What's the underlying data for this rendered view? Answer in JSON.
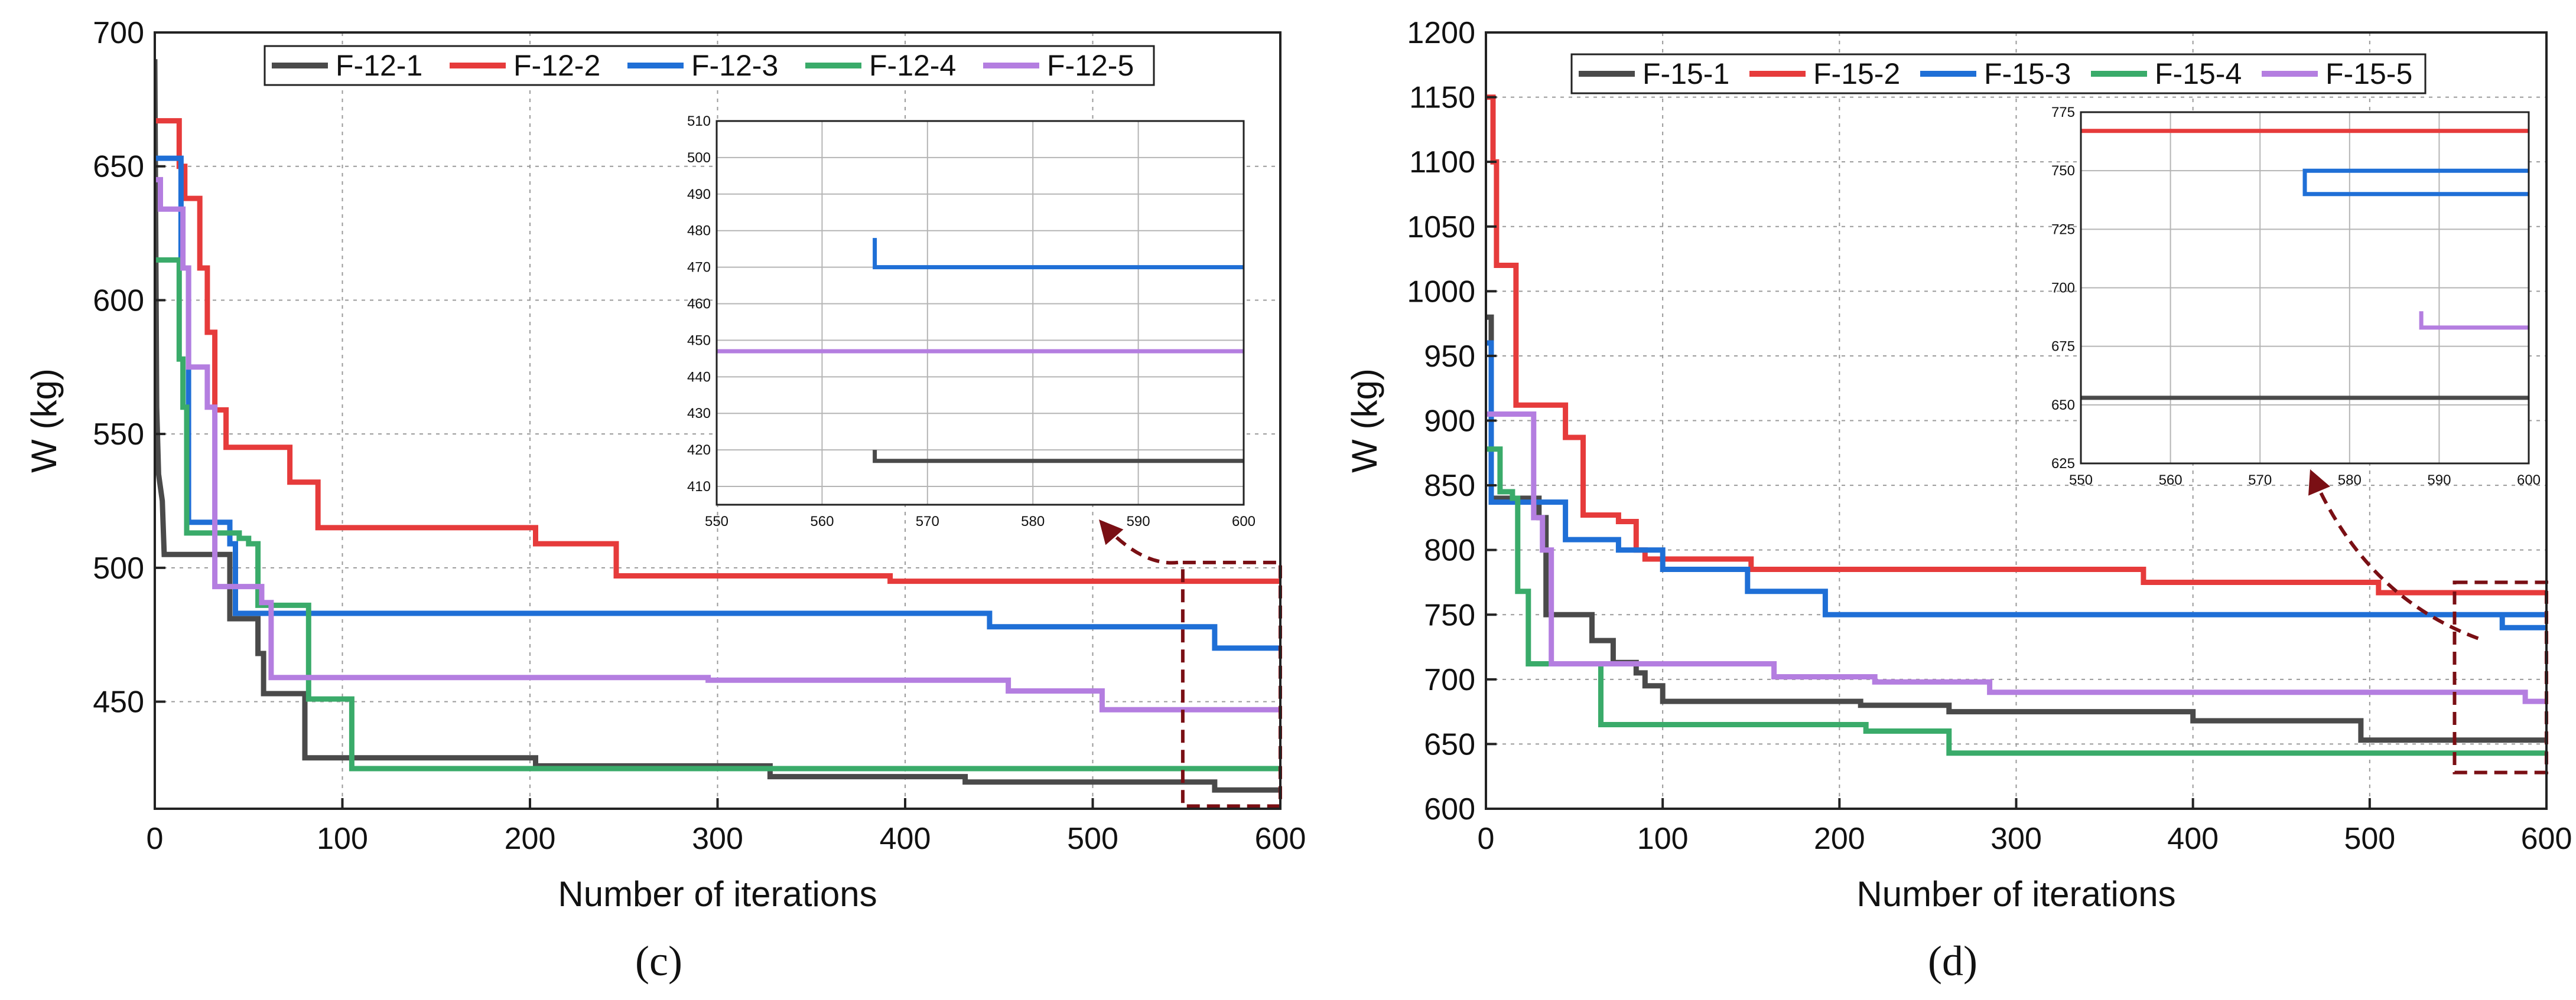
{
  "panel_labels": [
    "(c)",
    "(d)"
  ],
  "chart_data": [
    {
      "type": "line",
      "id": "c",
      "panel_label": "(c)",
      "xlabel": "Number of iterations",
      "ylabel": "W (kg)",
      "xlim": [
        0,
        600
      ],
      "ylim": [
        410,
        700
      ],
      "xticks": [
        0,
        100,
        200,
        300,
        400,
        500,
        600
      ],
      "yticks": [
        450,
        500,
        550,
        600,
        650,
        700
      ],
      "legend_position": "top",
      "series": [
        {
          "name": "F-12-1",
          "color": "#4a4a4a",
          "points": [
            [
              0,
              690
            ],
            [
              1,
              560
            ],
            [
              2,
              535
            ],
            [
              4,
              525
            ],
            [
              5,
              505
            ],
            [
              40,
              505
            ],
            [
              40,
              481
            ],
            [
              55,
              481
            ],
            [
              55,
              468
            ],
            [
              58,
              468
            ],
            [
              58,
              453
            ],
            [
              80,
              453
            ],
            [
              80,
              429
            ],
            [
              203,
              429
            ],
            [
              203,
              426
            ],
            [
              328,
              426
            ],
            [
              328,
              422
            ],
            [
              432,
              422
            ],
            [
              432,
              420
            ],
            [
              565,
              420
            ],
            [
              565,
              417
            ],
            [
              600,
              417
            ]
          ]
        },
        {
          "name": "F-12-2",
          "color": "#e63b3b",
          "points": [
            [
              0,
              667
            ],
            [
              13,
              667
            ],
            [
              13,
              650
            ],
            [
              16,
              650
            ],
            [
              16,
              638
            ],
            [
              24,
              638
            ],
            [
              24,
              612
            ],
            [
              28,
              612
            ],
            [
              28,
              588
            ],
            [
              32,
              588
            ],
            [
              32,
              559
            ],
            [
              38,
              559
            ],
            [
              38,
              545
            ],
            [
              72,
              545
            ],
            [
              72,
              532
            ],
            [
              87,
              532
            ],
            [
              87,
              515
            ],
            [
              203,
              515
            ],
            [
              203,
              509
            ],
            [
              246,
              509
            ],
            [
              246,
              497
            ],
            [
              392,
              497
            ],
            [
              392,
              495
            ],
            [
              600,
              495
            ]
          ]
        },
        {
          "name": "F-12-3",
          "color": "#1f6fd6",
          "points": [
            [
              0,
              653
            ],
            [
              14,
              653
            ],
            [
              14,
              612
            ],
            [
              18,
              612
            ],
            [
              18,
              517
            ],
            [
              40,
              517
            ],
            [
              40,
              509
            ],
            [
              43,
              509
            ],
            [
              43,
              483
            ],
            [
              445,
              483
            ],
            [
              445,
              478
            ],
            [
              565,
              478
            ],
            [
              565,
              470
            ],
            [
              600,
              470
            ]
          ]
        },
        {
          "name": "F-12-4",
          "color": "#3aab6a",
          "points": [
            [
              0,
              615
            ],
            [
              13,
              615
            ],
            [
              13,
              578
            ],
            [
              15,
              578
            ],
            [
              15,
              560
            ],
            [
              17,
              560
            ],
            [
              17,
              513
            ],
            [
              45,
              513
            ],
            [
              45,
              511
            ],
            [
              50,
              511
            ],
            [
              50,
              509
            ],
            [
              55,
              509
            ],
            [
              55,
              486
            ],
            [
              82,
              486
            ],
            [
              82,
              451
            ],
            [
              105,
              451
            ],
            [
              105,
              425
            ],
            [
              600,
              425
            ]
          ]
        },
        {
          "name": "F-12-5",
          "color": "#b47ee0",
          "points": [
            [
              0,
              645
            ],
            [
              3,
              645
            ],
            [
              3,
              634
            ],
            [
              15,
              634
            ],
            [
              15,
              612
            ],
            [
              18,
              612
            ],
            [
              18,
              575
            ],
            [
              28,
              575
            ],
            [
              28,
              560
            ],
            [
              32,
              560
            ],
            [
              32,
              493
            ],
            [
              57,
              493
            ],
            [
              57,
              487
            ],
            [
              62,
              487
            ],
            [
              62,
              459
            ],
            [
              295,
              459
            ],
            [
              295,
              458
            ],
            [
              455,
              458
            ],
            [
              455,
              454
            ],
            [
              505,
              454
            ],
            [
              505,
              447
            ],
            [
              600,
              447
            ]
          ]
        }
      ],
      "inset": {
        "xlim": [
          550,
          600
        ],
        "ylim": [
          405,
          510
        ],
        "xticks": [
          550,
          560,
          570,
          580,
          590,
          600
        ],
        "yticks": [
          410,
          420,
          430,
          440,
          450,
          460,
          470,
          480,
          490,
          500,
          510
        ]
      },
      "highlight_region": {
        "x": [
          548,
          600
        ],
        "y": [
          411,
          502
        ]
      }
    },
    {
      "type": "line",
      "id": "d",
      "panel_label": "(d)",
      "xlabel": "Number of iterations",
      "ylabel": "W (kg)",
      "xlim": [
        0,
        600
      ],
      "ylim": [
        600,
        1200
      ],
      "xticks": [
        0,
        100,
        200,
        300,
        400,
        500,
        600
      ],
      "yticks": [
        600,
        650,
        700,
        750,
        800,
        850,
        900,
        950,
        1000,
        1050,
        1100,
        1150,
        1200
      ],
      "legend_position": "top",
      "series": [
        {
          "name": "F-15-1",
          "color": "#4a4a4a",
          "points": [
            [
              0,
              980
            ],
            [
              3,
              980
            ],
            [
              3,
              840
            ],
            [
              30,
              840
            ],
            [
              30,
              825
            ],
            [
              34,
              825
            ],
            [
              34,
              750
            ],
            [
              60,
              750
            ],
            [
              60,
              730
            ],
            [
              72,
              730
            ],
            [
              72,
              713
            ],
            [
              85,
              713
            ],
            [
              85,
              705
            ],
            [
              90,
              705
            ],
            [
              90,
              695
            ],
            [
              100,
              695
            ],
            [
              100,
              683
            ],
            [
              212,
              683
            ],
            [
              212,
              680
            ],
            [
              262,
              680
            ],
            [
              262,
              675
            ],
            [
              400,
              675
            ],
            [
              400,
              668
            ],
            [
              495,
              668
            ],
            [
              495,
              653
            ],
            [
              600,
              653
            ]
          ]
        },
        {
          "name": "F-15-2",
          "color": "#e63b3b",
          "points": [
            [
              0,
              1150
            ],
            [
              4,
              1150
            ],
            [
              4,
              1100
            ],
            [
              6,
              1100
            ],
            [
              6,
              1020
            ],
            [
              17,
              1020
            ],
            [
              17,
              912
            ],
            [
              45,
              912
            ],
            [
              45,
              887
            ],
            [
              55,
              887
            ],
            [
              55,
              827
            ],
            [
              75,
              827
            ],
            [
              75,
              822
            ],
            [
              85,
              822
            ],
            [
              85,
              800
            ],
            [
              90,
              800
            ],
            [
              90,
              793
            ],
            [
              150,
              793
            ],
            [
              150,
              785
            ],
            [
              372,
              785
            ],
            [
              372,
              775
            ],
            [
              505,
              775
            ],
            [
              505,
              767
            ],
            [
              600,
              767
            ]
          ]
        },
        {
          "name": "F-15-3",
          "color": "#1f6fd6",
          "points": [
            [
              0,
              960
            ],
            [
              3,
              960
            ],
            [
              3,
              837
            ],
            [
              45,
              837
            ],
            [
              45,
              808
            ],
            [
              75,
              808
            ],
            [
              75,
              800
            ],
            [
              100,
              800
            ],
            [
              100,
              785
            ],
            [
              148,
              785
            ],
            [
              148,
              768
            ],
            [
              192,
              768
            ],
            [
              192,
              750
            ],
            [
              600,
              750
            ],
            [
              575,
              750
            ],
            [
              575,
              740
            ],
            [
              600,
              740
            ]
          ]
        },
        {
          "name": "F-15-4",
          "color": "#3aab6a",
          "points": [
            [
              0,
              878
            ],
            [
              8,
              878
            ],
            [
              8,
              845
            ],
            [
              15,
              845
            ],
            [
              15,
              840
            ],
            [
              18,
              840
            ],
            [
              18,
              768
            ],
            [
              24,
              768
            ],
            [
              24,
              712
            ],
            [
              65,
              712
            ],
            [
              65,
              665
            ],
            [
              215,
              665
            ],
            [
              215,
              660
            ],
            [
              262,
              660
            ],
            [
              262,
              643
            ],
            [
              600,
              643
            ]
          ]
        },
        {
          "name": "F-15-5",
          "color": "#b47ee0",
          "points": [
            [
              0,
              905
            ],
            [
              27,
              905
            ],
            [
              27,
              825
            ],
            [
              32,
              825
            ],
            [
              32,
              800
            ],
            [
              37,
              800
            ],
            [
              37,
              712
            ],
            [
              163,
              712
            ],
            [
              163,
              702
            ],
            [
              220,
              702
            ],
            [
              220,
              698
            ],
            [
              285,
              698
            ],
            [
              285,
              690
            ],
            [
              588,
              690
            ],
            [
              588,
              683
            ],
            [
              600,
              683
            ]
          ]
        }
      ],
      "inset": {
        "xlim": [
          550,
          600
        ],
        "ylim": [
          625,
          775
        ],
        "xticks": [
          550,
          560,
          570,
          580,
          590,
          600
        ],
        "yticks": [
          625,
          650,
          675,
          700,
          725,
          750,
          775
        ]
      },
      "highlight_region": {
        "x": [
          548,
          600
        ],
        "y": [
          628,
          775
        ]
      }
    }
  ]
}
